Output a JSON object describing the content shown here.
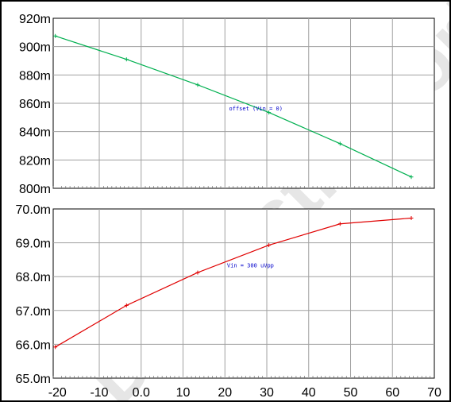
{
  "chart_data": [
    {
      "type": "line",
      "x": [
        -20.5,
        -3.5,
        13.5,
        30.5,
        47.5,
        64.5
      ],
      "series": [
        {
          "values": [
            907.5,
            891,
            873,
            853.5,
            831.5,
            808
          ],
          "color": "#00b050"
        }
      ],
      "xlim": [
        -21,
        70
      ],
      "ylim": [
        800,
        920
      ],
      "yticks": [
        {
          "value": 920,
          "label": "920m"
        },
        {
          "value": 900,
          "label": "900m"
        },
        {
          "value": 880,
          "label": "880m"
        },
        {
          "value": 860,
          "label": "860m"
        },
        {
          "value": 840,
          "label": "840m"
        },
        {
          "value": 820,
          "label": "820m"
        },
        {
          "value": 800,
          "label": "800m"
        }
      ],
      "annotation": {
        "text": "offset (Vin = 0)",
        "x": 21,
        "y": 855
      },
      "grid": true
    },
    {
      "type": "line",
      "x": [
        -20.5,
        -3.5,
        13.5,
        30.5,
        47.5,
        64.5
      ],
      "series": [
        {
          "values": [
            65.92,
            67.15,
            68.12,
            68.93,
            69.56,
            69.73
          ],
          "color": "#e00000"
        }
      ],
      "xlim": [
        -21,
        70
      ],
      "ylim": [
        65.0,
        70.0
      ],
      "yticks": [
        {
          "value": 70.0,
          "label": "70.0m"
        },
        {
          "value": 69.0,
          "label": "69.0m"
        },
        {
          "value": 68.0,
          "label": "68.0m"
        },
        {
          "value": 67.0,
          "label": "67.0m"
        },
        {
          "value": 66.0,
          "label": "66.0m"
        },
        {
          "value": 65.0,
          "label": "65.0m"
        }
      ],
      "xticks": [
        {
          "value": -20,
          "label": "-20"
        },
        {
          "value": -10,
          "label": "-10"
        },
        {
          "value": 0,
          "label": "0.0"
        },
        {
          "value": 10,
          "label": "10"
        },
        {
          "value": 20,
          "label": "20"
        },
        {
          "value": 30,
          "label": "30"
        },
        {
          "value": 40,
          "label": "40"
        },
        {
          "value": 50,
          "label": "50"
        },
        {
          "value": 60,
          "label": "60"
        },
        {
          "value": 70,
          "label": "70"
        }
      ],
      "annotation": {
        "text": "Vin = 300 uVpp",
        "x": 20.5,
        "y": 68.28
      },
      "grid": true
    }
  ],
  "watermark": {
    "text": "Draft: still working",
    "color": "#e6e6e6"
  }
}
